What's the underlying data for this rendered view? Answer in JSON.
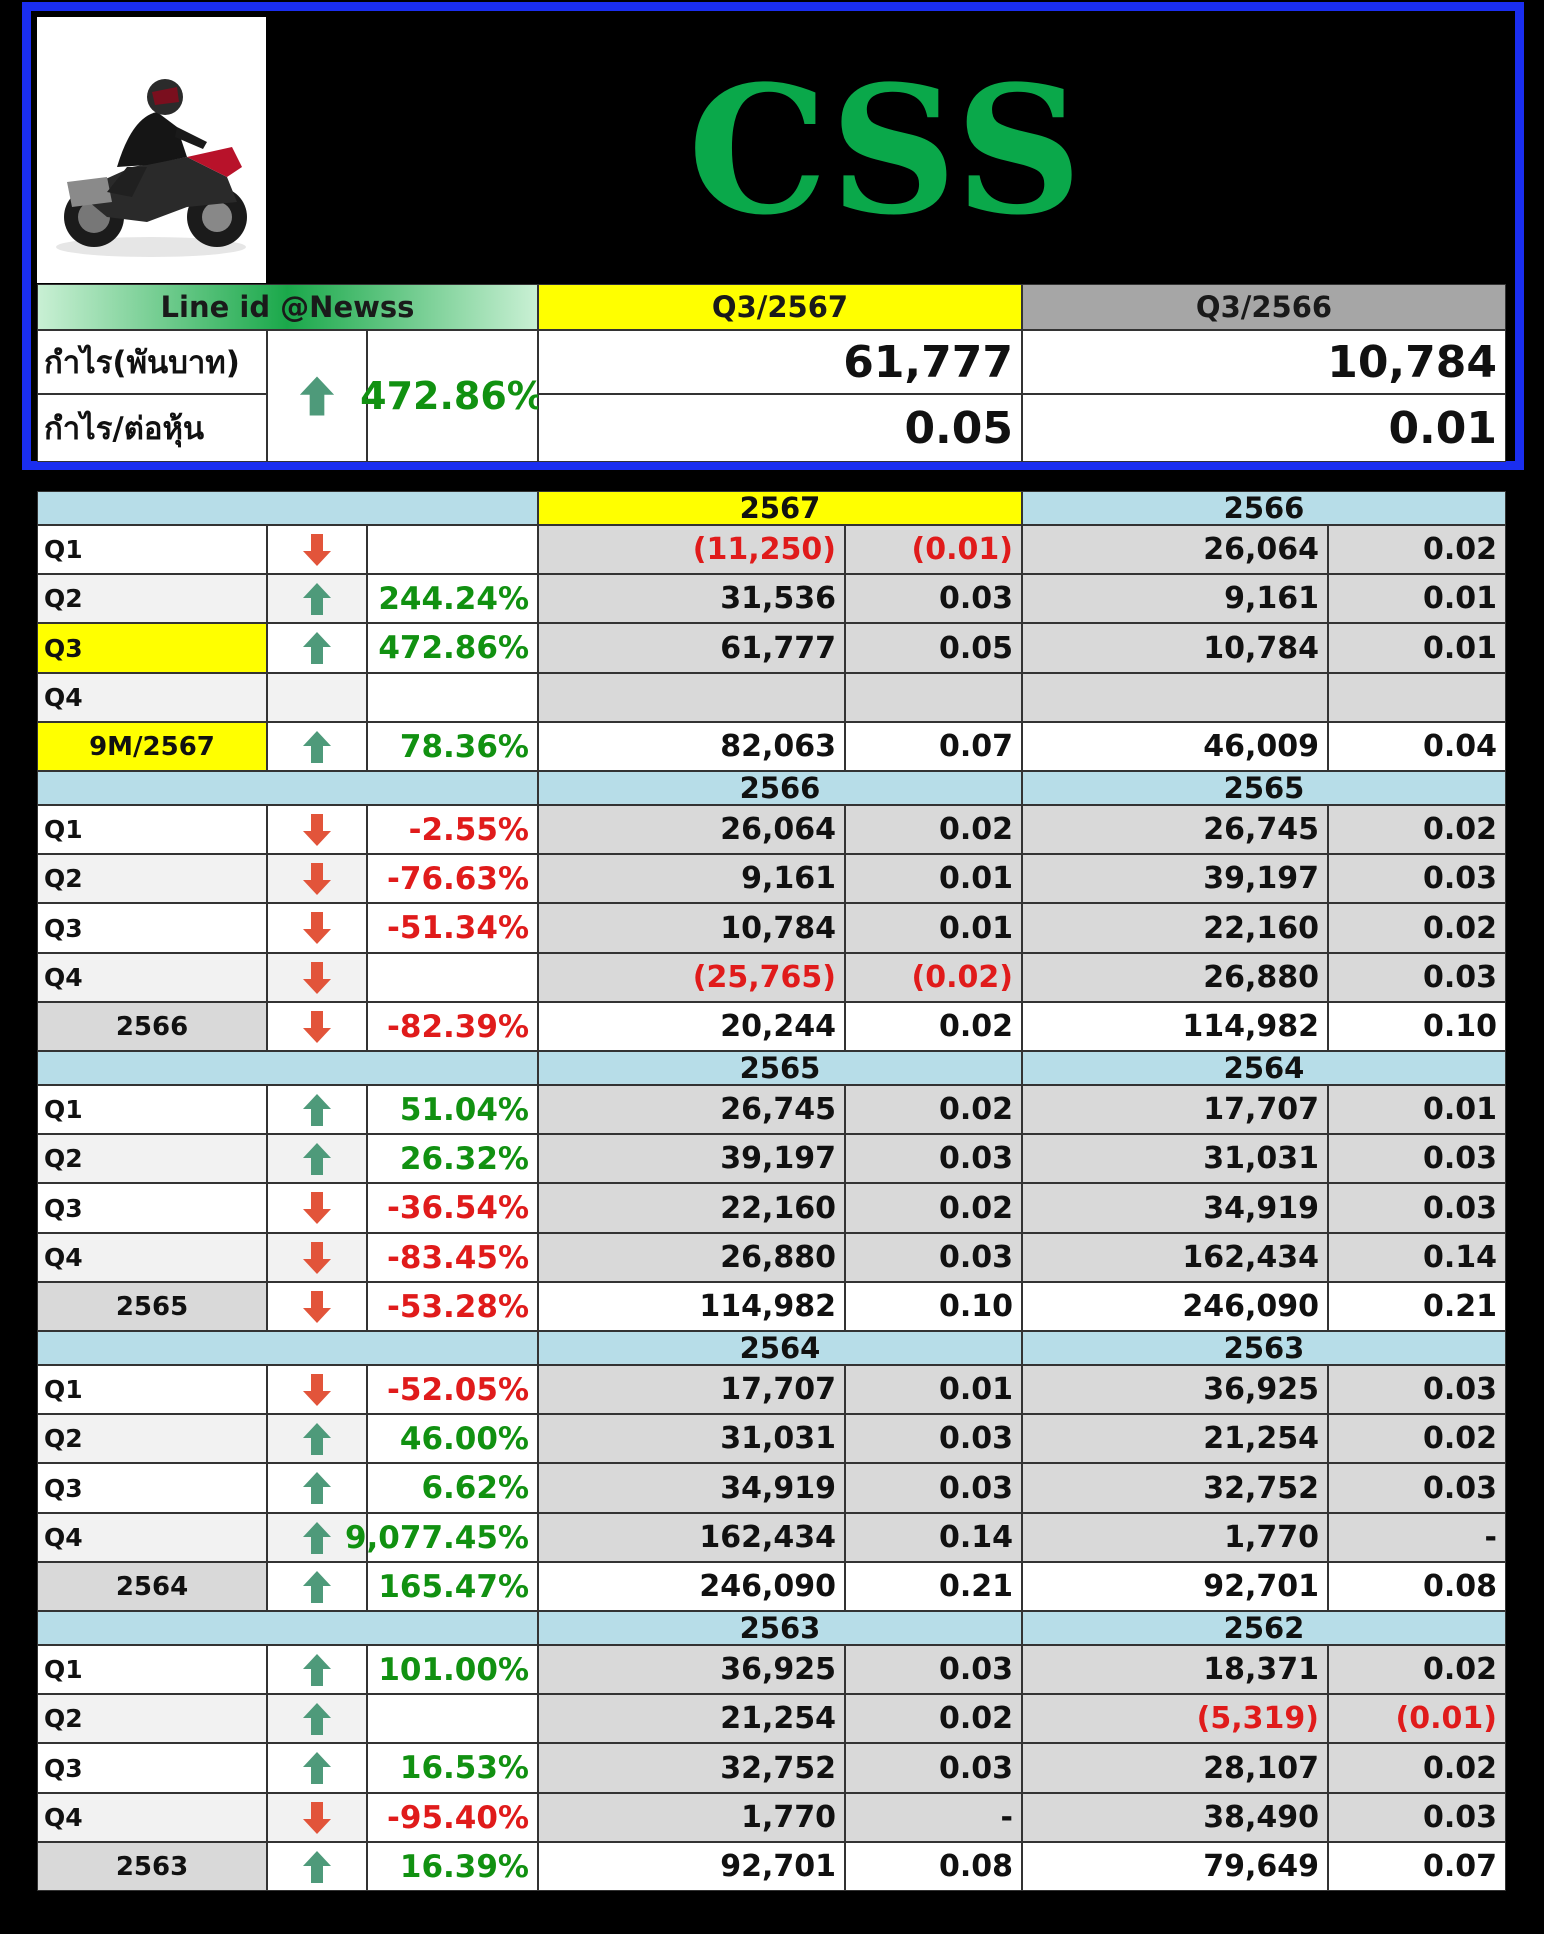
{
  "header": {
    "ticker": "CSS",
    "line_id": "Line id @Newss",
    "current_quarter": "Q3/2567",
    "prior_quarter": "Q3/2566",
    "profit_label": "กำไร(พันบาท)",
    "eps_label": "กำไร/ต่อหุ้น",
    "change_pct": "472.86%",
    "change_dir": "up",
    "profit_current": "61,777",
    "profit_prior": "10,784",
    "eps_current": "0.05",
    "eps_prior": "0.01"
  },
  "colors": {
    "up_arrow": "#4e9a7a",
    "down_arrow": "#e2543a",
    "positive_text": "#119111",
    "negative_text": "#e01b1b",
    "year_band": "#b7dde8",
    "highlight": "#ffff00"
  },
  "sections": [
    {
      "year_a": "2567",
      "year_b": "2566",
      "year_a_highlight": true,
      "rows": [
        {
          "label": "Q1",
          "dir": "down",
          "pct": "",
          "pct_sign": "",
          "a_profit": "(11,250)",
          "a_eps": "(0.01)",
          "a_neg": true,
          "b_profit": "26,064",
          "b_eps": "0.02",
          "b_neg": false,
          "style": "q"
        },
        {
          "label": "Q2",
          "dir": "up",
          "pct": "244.24%",
          "pct_sign": "pos",
          "a_profit": "31,536",
          "a_eps": "0.03",
          "a_neg": false,
          "b_profit": "9,161",
          "b_eps": "0.01",
          "b_neg": false,
          "style": "q"
        },
        {
          "label": "Q3",
          "dir": "up",
          "pct": "472.86%",
          "pct_sign": "pos",
          "a_profit": "61,777",
          "a_eps": "0.05",
          "a_neg": false,
          "b_profit": "10,784",
          "b_eps": "0.01",
          "b_neg": false,
          "style": "qhl"
        },
        {
          "label": "Q4",
          "dir": "",
          "pct": "",
          "pct_sign": "",
          "a_profit": "",
          "a_eps": "",
          "a_neg": false,
          "b_profit": "",
          "b_eps": "",
          "b_neg": false,
          "style": "q"
        },
        {
          "label": "9M/2567",
          "dir": "up",
          "pct": "78.36%",
          "pct_sign": "pos",
          "a_profit": "82,063",
          "a_eps": "0.07",
          "a_neg": false,
          "b_profit": "46,009",
          "b_eps": "0.04",
          "b_neg": false,
          "style": "totalhl"
        }
      ]
    },
    {
      "year_a": "2566",
      "year_b": "2565",
      "year_a_highlight": false,
      "rows": [
        {
          "label": "Q1",
          "dir": "down",
          "pct": "-2.55%",
          "pct_sign": "neg",
          "a_profit": "26,064",
          "a_eps": "0.02",
          "a_neg": false,
          "b_profit": "26,745",
          "b_eps": "0.02",
          "b_neg": false,
          "style": "q"
        },
        {
          "label": "Q2",
          "dir": "down",
          "pct": "-76.63%",
          "pct_sign": "neg",
          "a_profit": "9,161",
          "a_eps": "0.01",
          "a_neg": false,
          "b_profit": "39,197",
          "b_eps": "0.03",
          "b_neg": false,
          "style": "q"
        },
        {
          "label": "Q3",
          "dir": "down",
          "pct": "-51.34%",
          "pct_sign": "neg",
          "a_profit": "10,784",
          "a_eps": "0.01",
          "a_neg": false,
          "b_profit": "22,160",
          "b_eps": "0.02",
          "b_neg": false,
          "style": "q"
        },
        {
          "label": "Q4",
          "dir": "down",
          "pct": "",
          "pct_sign": "",
          "a_profit": "(25,765)",
          "a_eps": "(0.02)",
          "a_neg": true,
          "b_profit": "26,880",
          "b_eps": "0.03",
          "b_neg": false,
          "style": "q"
        },
        {
          "label": "2566",
          "dir": "down",
          "pct": "-82.39%",
          "pct_sign": "neg",
          "a_profit": "20,244",
          "a_eps": "0.02",
          "a_neg": false,
          "b_profit": "114,982",
          "b_eps": "0.10",
          "b_neg": false,
          "style": "total"
        }
      ]
    },
    {
      "year_a": "2565",
      "year_b": "2564",
      "year_a_highlight": false,
      "rows": [
        {
          "label": "Q1",
          "dir": "up",
          "pct": "51.04%",
          "pct_sign": "pos",
          "a_profit": "26,745",
          "a_eps": "0.02",
          "a_neg": false,
          "b_profit": "17,707",
          "b_eps": "0.01",
          "b_neg": false,
          "style": "q"
        },
        {
          "label": "Q2",
          "dir": "up",
          "pct": "26.32%",
          "pct_sign": "pos",
          "a_profit": "39,197",
          "a_eps": "0.03",
          "a_neg": false,
          "b_profit": "31,031",
          "b_eps": "0.03",
          "b_neg": false,
          "style": "q"
        },
        {
          "label": "Q3",
          "dir": "down",
          "pct": "-36.54%",
          "pct_sign": "neg",
          "a_profit": "22,160",
          "a_eps": "0.02",
          "a_neg": false,
          "b_profit": "34,919",
          "b_eps": "0.03",
          "b_neg": false,
          "style": "q"
        },
        {
          "label": "Q4",
          "dir": "down",
          "pct": "-83.45%",
          "pct_sign": "neg",
          "a_profit": "26,880",
          "a_eps": "0.03",
          "a_neg": false,
          "b_profit": "162,434",
          "b_eps": "0.14",
          "b_neg": false,
          "style": "q"
        },
        {
          "label": "2565",
          "dir": "down",
          "pct": "-53.28%",
          "pct_sign": "neg",
          "a_profit": "114,982",
          "a_eps": "0.10",
          "a_neg": false,
          "b_profit": "246,090",
          "b_eps": "0.21",
          "b_neg": false,
          "style": "total"
        }
      ]
    },
    {
      "year_a": "2564",
      "year_b": "2563",
      "year_a_highlight": false,
      "rows": [
        {
          "label": "Q1",
          "dir": "down",
          "pct": "-52.05%",
          "pct_sign": "neg",
          "a_profit": "17,707",
          "a_eps": "0.01",
          "a_neg": false,
          "b_profit": "36,925",
          "b_eps": "0.03",
          "b_neg": false,
          "style": "q"
        },
        {
          "label": "Q2",
          "dir": "up",
          "pct": "46.00%",
          "pct_sign": "pos",
          "a_profit": "31,031",
          "a_eps": "0.03",
          "a_neg": false,
          "b_profit": "21,254",
          "b_eps": "0.02",
          "b_neg": false,
          "style": "q"
        },
        {
          "label": "Q3",
          "dir": "up",
          "pct": "6.62%",
          "pct_sign": "pos",
          "a_profit": "34,919",
          "a_eps": "0.03",
          "a_neg": false,
          "b_profit": "32,752",
          "b_eps": "0.03",
          "b_neg": false,
          "style": "q"
        },
        {
          "label": "Q4",
          "dir": "up",
          "pct": "9,077.45%",
          "pct_sign": "pos",
          "a_profit": "162,434",
          "a_eps": "0.14",
          "a_neg": false,
          "b_profit": "1,770",
          "b_eps": "-",
          "b_neg": false,
          "style": "q"
        },
        {
          "label": "2564",
          "dir": "up",
          "pct": "165.47%",
          "pct_sign": "pos",
          "a_profit": "246,090",
          "a_eps": "0.21",
          "a_neg": false,
          "b_profit": "92,701",
          "b_eps": "0.08",
          "b_neg": false,
          "style": "total"
        }
      ]
    },
    {
      "year_a": "2563",
      "year_b": "2562",
      "year_a_highlight": false,
      "rows": [
        {
          "label": "Q1",
          "dir": "up",
          "pct": "101.00%",
          "pct_sign": "pos",
          "a_profit": "36,925",
          "a_eps": "0.03",
          "a_neg": false,
          "b_profit": "18,371",
          "b_eps": "0.02",
          "b_neg": false,
          "style": "q"
        },
        {
          "label": "Q2",
          "dir": "up",
          "pct": "",
          "pct_sign": "",
          "a_profit": "21,254",
          "a_eps": "0.02",
          "a_neg": false,
          "b_profit": "(5,319)",
          "b_eps": "(0.01)",
          "b_neg": true,
          "style": "q"
        },
        {
          "label": "Q3",
          "dir": "up",
          "pct": "16.53%",
          "pct_sign": "pos",
          "a_profit": "32,752",
          "a_eps": "0.03",
          "a_neg": false,
          "b_profit": "28,107",
          "b_eps": "0.02",
          "b_neg": false,
          "style": "q"
        },
        {
          "label": "Q4",
          "dir": "down",
          "pct": "-95.40%",
          "pct_sign": "neg",
          "a_profit": "1,770",
          "a_eps": "-",
          "a_neg": false,
          "b_profit": "38,490",
          "b_eps": "0.03",
          "b_neg": false,
          "style": "q"
        },
        {
          "label": "2563",
          "dir": "up",
          "pct": "16.39%",
          "pct_sign": "pos",
          "a_profit": "92,701",
          "a_eps": "0.08",
          "a_neg": false,
          "b_profit": "79,649",
          "b_eps": "0.07",
          "b_neg": false,
          "style": "total"
        }
      ]
    }
  ]
}
